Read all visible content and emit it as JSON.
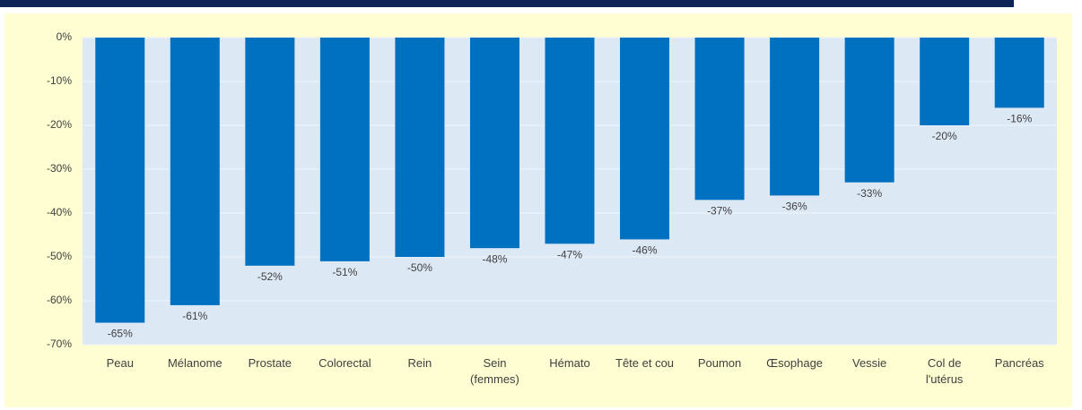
{
  "chart_data": {
    "type": "bar",
    "categories": [
      "Peau",
      "Mélanome",
      "Prostate",
      "Colorectal",
      "Rein",
      "Sein\n(femmes)",
      "Hémato",
      "Tête et cou",
      "Poumon",
      "Œsophage",
      "Vessie",
      "Col de\nl'utérus",
      "Pancréas"
    ],
    "values": [
      -65,
      -61,
      -52,
      -51,
      -50,
      -48,
      -47,
      -46,
      -37,
      -36,
      -33,
      -20,
      -16
    ],
    "value_labels": [
      "-65%",
      "-61%",
      "-52%",
      "-51%",
      "-50%",
      "-48%",
      "-47%",
      "-46%",
      "-37%",
      "-36%",
      "-33%",
      "-20%",
      "-16%"
    ],
    "color": "#0070c0",
    "ylim": [
      -70,
      0
    ],
    "yticks": [
      {
        "value": 0,
        "label": "0%"
      },
      {
        "value": -10,
        "label": "-10%"
      },
      {
        "value": -20,
        "label": "-20%"
      },
      {
        "value": -30,
        "label": "-30%"
      },
      {
        "value": -40,
        "label": "-40%"
      },
      {
        "value": -50,
        "label": "-50%"
      },
      {
        "value": -60,
        "label": "-60%"
      },
      {
        "value": -70,
        "label": "-70%"
      }
    ],
    "grid": true
  }
}
